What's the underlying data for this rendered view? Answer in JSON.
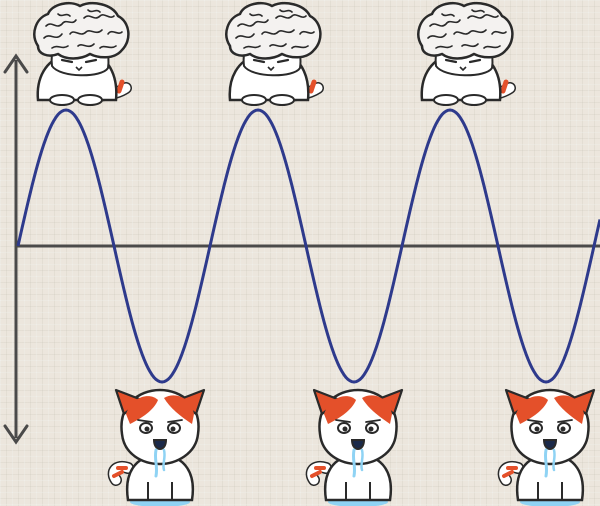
{
  "meme": {
    "top_characters": [
      {
        "state": "big-brain-cat"
      },
      {
        "state": "big-brain-cat"
      },
      {
        "state": "big-brain-cat"
      }
    ],
    "bottom_characters": [
      {
        "state": "drooling-cat"
      },
      {
        "state": "drooling-cat"
      },
      {
        "state": "drooling-cat"
      }
    ],
    "colors": {
      "background": "#ece6dd",
      "axis": "#4a4a4a",
      "wave": "#2e3a8c",
      "cat_orange": "#e4502a",
      "outline": "#2a2a2a",
      "brain": "#f4f2f0",
      "drool": "#8fd3f4"
    }
  }
}
